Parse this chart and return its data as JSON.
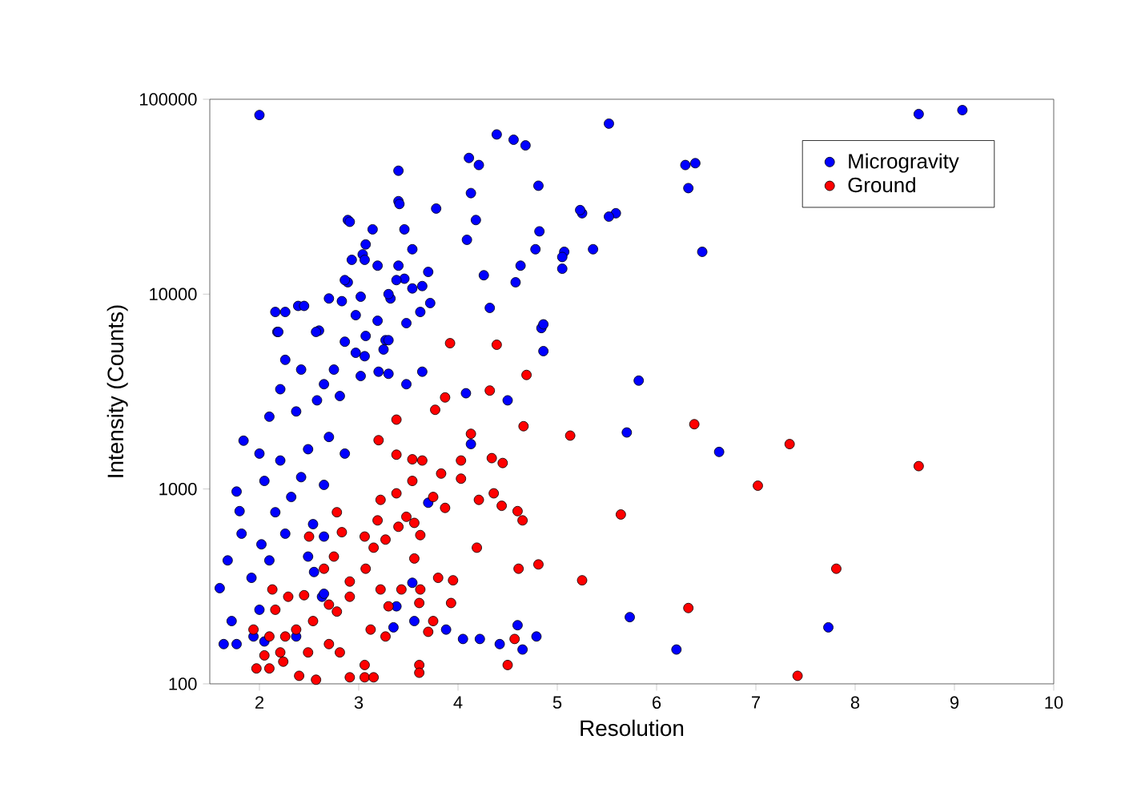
{
  "chart_data": {
    "type": "scatter",
    "xlabel": "Resolution",
    "ylabel": "Intensity (Counts)",
    "xlim": [
      1.5,
      10
    ],
    "ylim": [
      100,
      100000
    ],
    "xticks": [
      2,
      3,
      4,
      5,
      6,
      7,
      8,
      9,
      10
    ],
    "yticks": [
      100,
      1000,
      10000,
      100000
    ],
    "log": "y",
    "grid": false,
    "legend": "top right",
    "marker": "circle",
    "series": [
      {
        "name": "Microgravity",
        "color": "#0000ff",
        "x": [
          2.0,
          9.08,
          8.64,
          5.52,
          4.39,
          4.56,
          4.68,
          4.11,
          4.21,
          4.81,
          6.29,
          6.39,
          6.32,
          6.46,
          3.4,
          3.4,
          2.89,
          3.4,
          4.13,
          4.18,
          4.09,
          4.82,
          4.78,
          5.25,
          5.59,
          5.52,
          5.07,
          4.26,
          4.63,
          4.58,
          3.19,
          2.89,
          2.93,
          3.04,
          3.46,
          3.64,
          3.32,
          3.72,
          2.7,
          4.32,
          4.84,
          4.86,
          2.16,
          2.26,
          2.39,
          2.45,
          2.18,
          2.6,
          3.07,
          3.27,
          3.25,
          3.64,
          3.2,
          3.06,
          4.86,
          5.05,
          5.05,
          5.36,
          5.23,
          6.63,
          5.7,
          5.73,
          6.2,
          7.73,
          5.82,
          3.88,
          4.05,
          4.22,
          4.42,
          4.6,
          4.65,
          4.79,
          3.54,
          3.38,
          3.56,
          3.35,
          4.08,
          4.13,
          4.5,
          3.7,
          2.63,
          2.55,
          2.49,
          1.84,
          1.77,
          1.8,
          1.82,
          1.68,
          1.6,
          1.64,
          1.77,
          1.94,
          1.72,
          2.0,
          1.92,
          2.1,
          2.02,
          2.26,
          2.16,
          2.32,
          2.05,
          2.42,
          2.21,
          2.0,
          2.49,
          2.7,
          2.1,
          2.37,
          2.58,
          2.81,
          2.21,
          2.65,
          2.54,
          2.65,
          2.37,
          2.05,
          2.86,
          2.65,
          2.19,
          2.26,
          2.42,
          2.57,
          2.86,
          2.97,
          2.83,
          3.02,
          3.3,
          2.97,
          3.19,
          3.3,
          3.48,
          3.62,
          3.54,
          3.7,
          3.38,
          2.86,
          3.06,
          3.07,
          3.14,
          3.46,
          3.54,
          3.78,
          3.41,
          2.91,
          3.3,
          3.48,
          3.02,
          2.75,
          2.65
        ],
        "values": [
          83000,
          88000,
          84000,
          75000,
          66000,
          62000,
          58000,
          50000,
          46000,
          36000,
          46000,
          47000,
          35000,
          16500,
          43000,
          30000,
          24000,
          14000,
          33000,
          24000,
          19000,
          21000,
          17000,
          26000,
          26000,
          25000,
          16500,
          12500,
          14000,
          11500,
          14000,
          11500,
          15000,
          16000,
          12000,
          11000,
          9500,
          9000,
          9500,
          8500,
          6700,
          5100,
          8100,
          8100,
          8700,
          8700,
          6400,
          6500,
          6100,
          5800,
          5200,
          4000,
          4000,
          4800,
          7000,
          15500,
          13500,
          17000,
          27000,
          1550,
          1950,
          220,
          150,
          195,
          3600,
          190,
          170,
          170,
          160,
          200,
          150,
          175,
          330,
          250,
          210,
          195,
          3100,
          1700,
          2850,
          850,
          280,
          375,
          450,
          1770,
          970,
          770,
          590,
          430,
          310,
          160,
          160,
          175,
          210,
          240,
          350,
          430,
          520,
          590,
          760,
          910,
          1100,
          1150,
          1400,
          1520,
          1600,
          1850,
          2350,
          2500,
          2850,
          3000,
          3250,
          1050,
          660,
          290,
          175,
          165,
          1520,
          570,
          6400,
          4600,
          4100,
          6400,
          5700,
          5000,
          9200,
          9700,
          10000,
          7800,
          7300,
          5800,
          7100,
          8100,
          10700,
          13000,
          11800,
          11800,
          15000,
          18000,
          21500,
          21500,
          17000,
          27500,
          29000,
          23500,
          3900,
          3450,
          3800,
          4100,
          3450
        ]
      },
      {
        "name": "Ground",
        "color": "#ff0000",
        "x": [
          4.32,
          3.87,
          3.77,
          3.38,
          4.13,
          4.66,
          5.13,
          3.2,
          3.38,
          3.54,
          3.64,
          3.83,
          4.03,
          4.03,
          4.34,
          4.45,
          3.54,
          3.38,
          3.22,
          3.75,
          3.87,
          4.21,
          4.36,
          4.44,
          4.6,
          4.65,
          3.48,
          3.4,
          3.56,
          3.62,
          3.19,
          3.06,
          2.78,
          2.83,
          2.5,
          3.27,
          3.15,
          3.56,
          4.19,
          4.61,
          4.81,
          5.25,
          5.64,
          2.75,
          2.65,
          2.91,
          3.07,
          3.22,
          3.43,
          3.62,
          3.8,
          3.95,
          3.93,
          3.75,
          3.61,
          3.7,
          3.3,
          3.27,
          3.12,
          2.91,
          2.78,
          2.7,
          2.54,
          2.37,
          2.26,
          2.16,
          2.13,
          2.29,
          2.45,
          1.94,
          2.1,
          2.21,
          2.05,
          1.97,
          2.1,
          2.4,
          2.57,
          2.24,
          2.49,
          2.7,
          2.81,
          2.91,
          3.06,
          3.06,
          3.15,
          3.61,
          3.61,
          4.5,
          4.57,
          6.38,
          7.34,
          7.02,
          8.64,
          7.81,
          6.32,
          7.42,
          3.92,
          4.39,
          4.69
        ],
        "values": [
          3200,
          2950,
          2550,
          2270,
          1920,
          2100,
          1880,
          1780,
          1500,
          1420,
          1400,
          1200,
          1130,
          1400,
          1440,
          1360,
          1100,
          950,
          880,
          910,
          800,
          880,
          950,
          820,
          770,
          690,
          720,
          640,
          670,
          580,
          690,
          570,
          760,
          600,
          570,
          550,
          500,
          440,
          500,
          390,
          410,
          340,
          740,
          450,
          390,
          335,
          390,
          305,
          305,
          305,
          350,
          340,
          260,
          210,
          260,
          185,
          250,
          175,
          190,
          280,
          235,
          255,
          210,
          190,
          175,
          240,
          305,
          280,
          285,
          190,
          175,
          145,
          140,
          120,
          120,
          110,
          105,
          130,
          145,
          160,
          145,
          108,
          125,
          108,
          108,
          125,
          114,
          125,
          170,
          2150,
          1700,
          1040,
          1310,
          390,
          245,
          110,
          5600,
          5500,
          3850
        ]
      }
    ]
  }
}
